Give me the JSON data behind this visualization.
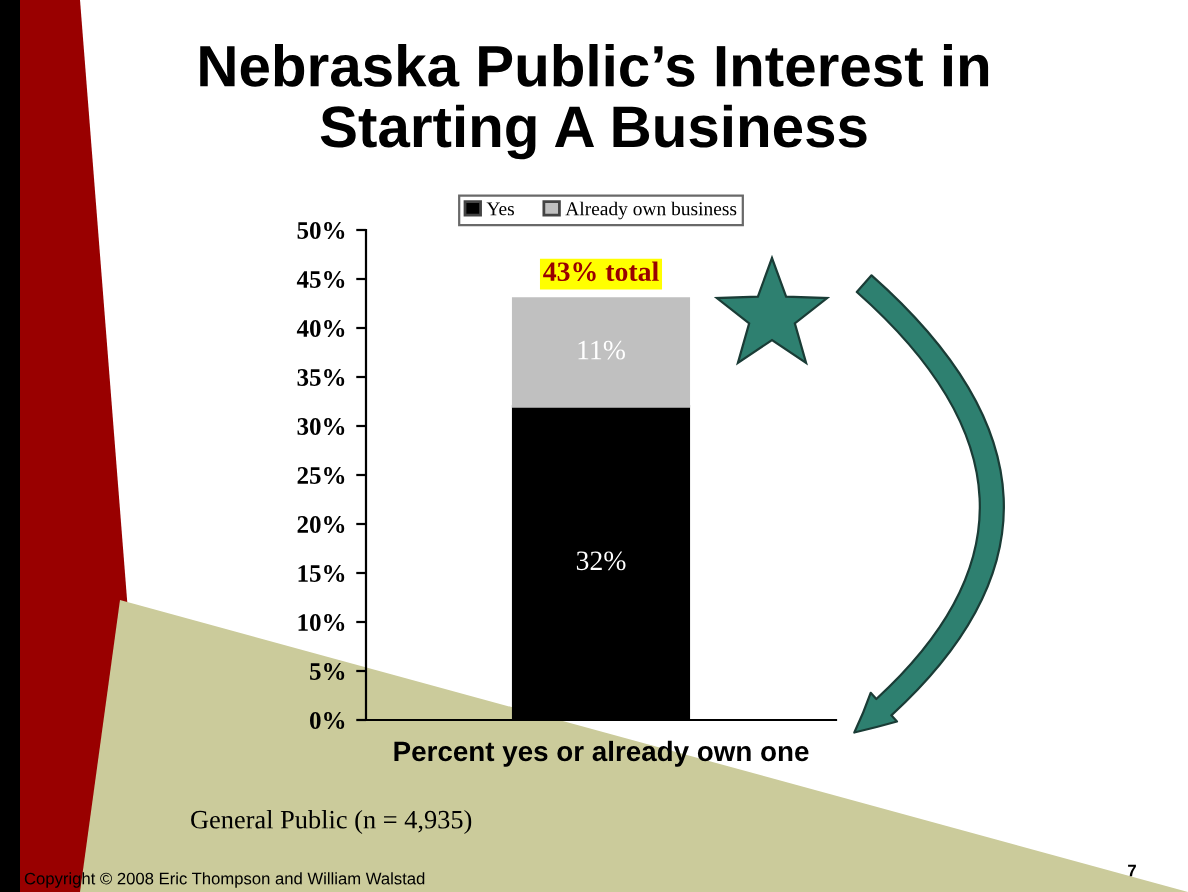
{
  "chart_data": {
    "type": "bar",
    "title": "Nebraska Public’s Interest in\nStarting A Business",
    "xlabel": "Percent yes or already own one",
    "categories": [
      null
    ],
    "stacked": true,
    "series": [
      {
        "name": "Yes",
        "color": "#000000",
        "values": [
          32
        ],
        "value_labels": [
          "32%"
        ]
      },
      {
        "name": "Already own business",
        "color": "#c0c0c0",
        "values": [
          11
        ],
        "value_labels": [
          "11%"
        ]
      }
    ],
    "totals": [
      "43% total"
    ],
    "ylim": [
      0,
      50
    ],
    "yticks": [
      {
        "value": 0,
        "label": "0%"
      },
      {
        "value": 5,
        "label": "5%"
      },
      {
        "value": 10,
        "label": "10%"
      },
      {
        "value": 15,
        "label": "15%"
      },
      {
        "value": 20,
        "label": "20%"
      },
      {
        "value": 25,
        "label": "25%"
      },
      {
        "value": 30,
        "label": "30%"
      },
      {
        "value": 35,
        "label": "35%"
      },
      {
        "value": 40,
        "label": "40%"
      },
      {
        "value": 45,
        "label": "45%"
      },
      {
        "value": 50,
        "label": "50%"
      }
    ],
    "grid": false,
    "legend": "top",
    "annotations": [
      "General Public (n = 4,935)",
      "Copyright © 2008 Eric Thompson and William Walstad",
      "7"
    ]
  }
}
